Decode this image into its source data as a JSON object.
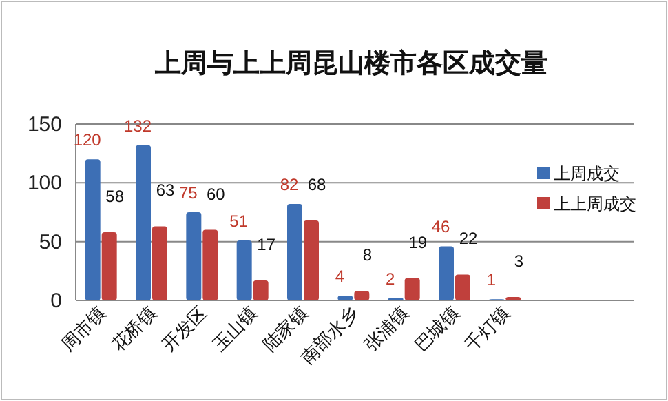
{
  "chart_data": {
    "type": "bar",
    "title": "上周与上上周昆山楼市各区成交量",
    "categories": [
      "周市镇",
      "花桥镇",
      "开发区",
      "玉山镇",
      "陆家镇",
      "南部水乡",
      "张浦镇",
      "巴城镇",
      "千灯镇"
    ],
    "series": [
      {
        "name": "上周成交",
        "color": "#3d6fb5",
        "values": [
          120,
          132,
          75,
          51,
          82,
          4,
          2,
          46,
          1
        ]
      },
      {
        "name": "上上周成交",
        "color": "#c0403c",
        "values": [
          58,
          63,
          60,
          17,
          68,
          8,
          19,
          22,
          3
        ]
      }
    ],
    "ylim": [
      0,
      150
    ],
    "yticks": [
      0,
      50,
      100,
      150
    ],
    "grid": "y",
    "legend": "right",
    "data_labels": true
  }
}
